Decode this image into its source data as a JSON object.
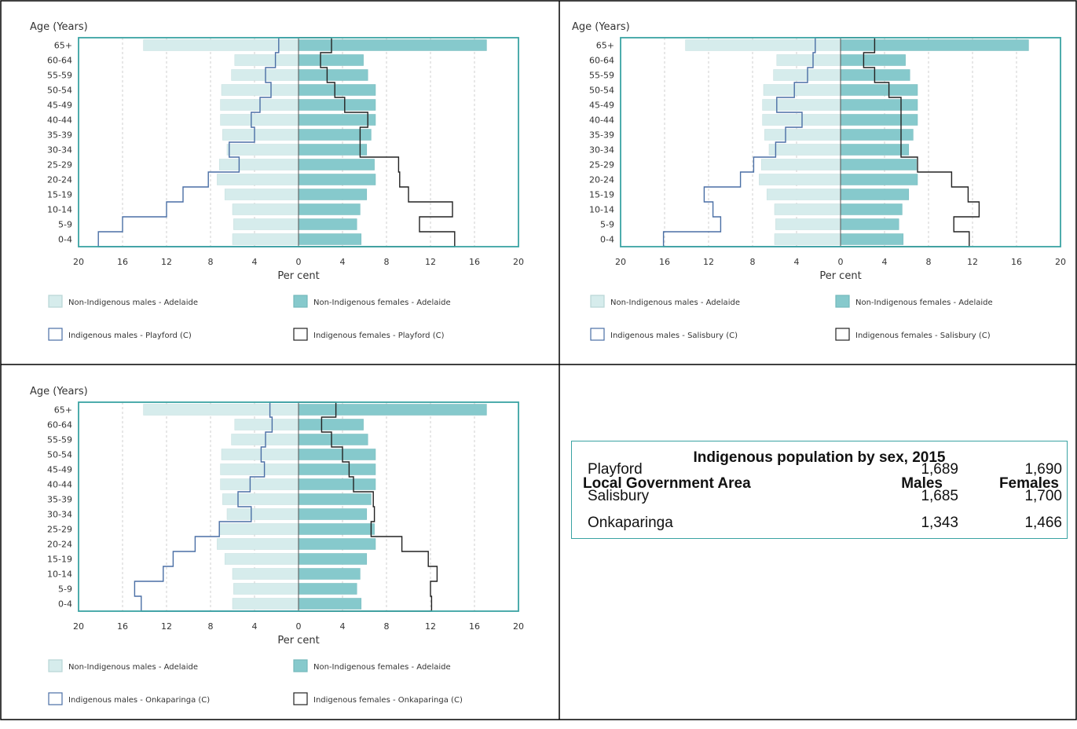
{
  "colors": {
    "frame": "#000000",
    "plot_border": "#3aa3a3",
    "male_bar_fill": "#d6ecec",
    "female_bar_fill": "#86c9cc",
    "indigenous_male_line": "#4a6fa5",
    "indigenous_female_line": "#222222"
  },
  "chart_data": [
    {
      "type": "bar",
      "orientation": "horizontal-population-pyramid",
      "ylabel": "Age (Years)",
      "xlabel": "Per cent",
      "categories": [
        "65+",
        "60-64",
        "55-59",
        "50-54",
        "45-49",
        "40-44",
        "35-39",
        "30-34",
        "25-29",
        "20-24",
        "15-19",
        "10-14",
        "5-9",
        "0-4"
      ],
      "xticks": [
        "20",
        "16",
        "12",
        "8",
        "4",
        "0",
        "4",
        "8",
        "12",
        "16",
        "20"
      ],
      "xlim": [
        -20,
        20
      ],
      "series": [
        {
          "name": "Non-Indigenous males - Adelaide",
          "kind": "bar",
          "side": "left",
          "values": [
            14.1,
            5.8,
            6.1,
            7.0,
            7.1,
            7.1,
            6.9,
            6.5,
            7.2,
            7.4,
            6.7,
            6.0,
            5.9,
            6.0
          ]
        },
        {
          "name": "Non-Indigenous females - Adelaide",
          "kind": "bar",
          "side": "right",
          "values": [
            17.1,
            5.9,
            6.3,
            7.0,
            7.0,
            7.0,
            6.6,
            6.2,
            6.9,
            7.0,
            6.2,
            5.6,
            5.3,
            5.7
          ]
        },
        {
          "name": "Indigenous males - Playford (C)",
          "kind": "step",
          "side": "left",
          "values": [
            1.8,
            2.1,
            3.0,
            2.5,
            3.5,
            4.3,
            4.0,
            6.3,
            5.4,
            8.2,
            10.5,
            12.0,
            16.0,
            18.2
          ]
        },
        {
          "name": "Indigenous females - Playford (C)",
          "kind": "step",
          "side": "right",
          "values": [
            3.0,
            2.0,
            2.6,
            3.3,
            4.2,
            6.3,
            5.6,
            5.6,
            9.1,
            9.2,
            10.0,
            14.0,
            11.0,
            14.2
          ]
        }
      ]
    },
    {
      "type": "bar",
      "orientation": "horizontal-population-pyramid",
      "ylabel": "Age (Years)",
      "xlabel": "Per cent",
      "categories": [
        "65+",
        "60-64",
        "55-59",
        "50-54",
        "45-49",
        "40-44",
        "35-39",
        "30-34",
        "25-29",
        "20-24",
        "15-19",
        "10-14",
        "5-9",
        "0-4"
      ],
      "xticks": [
        "20",
        "16",
        "12",
        "8",
        "4",
        "0",
        "4",
        "8",
        "12",
        "16",
        "20"
      ],
      "xlim": [
        -20,
        20
      ],
      "series": [
        {
          "name": "Non-Indigenous males - Adelaide",
          "kind": "bar",
          "side": "left",
          "values": [
            14.1,
            5.8,
            6.1,
            7.0,
            7.1,
            7.1,
            6.9,
            6.5,
            7.2,
            7.4,
            6.7,
            6.0,
            5.9,
            6.0
          ]
        },
        {
          "name": "Non-Indigenous females - Adelaide",
          "kind": "bar",
          "side": "right",
          "values": [
            17.1,
            5.9,
            6.3,
            7.0,
            7.0,
            7.0,
            6.6,
            6.2,
            6.9,
            7.0,
            6.2,
            5.6,
            5.3,
            5.7
          ]
        },
        {
          "name": "Indigenous males - Salisbury (C)",
          "kind": "step",
          "side": "left",
          "values": [
            2.3,
            2.5,
            3.0,
            4.2,
            5.8,
            3.5,
            5.0,
            5.9,
            7.9,
            9.1,
            12.4,
            11.6,
            10.9,
            16.1
          ]
        },
        {
          "name": "Indigenous females - Salisbury (C)",
          "kind": "step",
          "side": "right",
          "values": [
            3.1,
            2.1,
            3.1,
            4.4,
            5.5,
            5.5,
            5.5,
            5.5,
            7.0,
            10.1,
            11.6,
            12.6,
            10.3,
            11.7
          ]
        }
      ]
    },
    {
      "type": "bar",
      "orientation": "horizontal-population-pyramid",
      "ylabel": "Age (Years)",
      "xlabel": "Per cent",
      "categories": [
        "65+",
        "60-64",
        "55-59",
        "50-54",
        "45-49",
        "40-44",
        "35-39",
        "30-34",
        "25-29",
        "20-24",
        "15-19",
        "10-14",
        "5-9",
        "0-4"
      ],
      "xticks": [
        "20",
        "16",
        "12",
        "8",
        "4",
        "0",
        "4",
        "8",
        "12",
        "16",
        "20"
      ],
      "xlim": [
        -20,
        20
      ],
      "series": [
        {
          "name": "Non-Indigenous males - Adelaide",
          "kind": "bar",
          "side": "left",
          "values": [
            14.1,
            5.8,
            6.1,
            7.0,
            7.1,
            7.1,
            6.9,
            6.5,
            7.2,
            7.4,
            6.7,
            6.0,
            5.9,
            6.0
          ]
        },
        {
          "name": "Non-Indigenous females - Adelaide",
          "kind": "bar",
          "side": "right",
          "values": [
            17.1,
            5.9,
            6.3,
            7.0,
            7.0,
            7.0,
            6.6,
            6.2,
            6.9,
            7.0,
            6.2,
            5.6,
            5.3,
            5.7
          ]
        },
        {
          "name": "Indigenous males - Onkaparinga (C)",
          "kind": "step",
          "side": "left",
          "values": [
            2.6,
            2.4,
            3.0,
            3.4,
            3.1,
            4.4,
            5.5,
            4.3,
            7.2,
            9.4,
            11.4,
            12.3,
            14.9,
            14.3
          ]
        },
        {
          "name": "Indigenous females - Onkaparinga (C)",
          "kind": "step",
          "side": "right",
          "values": [
            3.4,
            2.1,
            3.0,
            4.0,
            4.6,
            5.0,
            6.8,
            6.9,
            6.6,
            9.4,
            11.8,
            12.6,
            12.0,
            12.1
          ]
        }
      ]
    }
  ],
  "table": {
    "title": "Indigenous population by sex, 2015",
    "headers": [
      "Local Government Area",
      "Males",
      "Females"
    ],
    "rows": [
      [
        "Playford",
        "1,689",
        "1,690"
      ],
      [
        "Salisbury",
        "1,685",
        "1,700"
      ],
      [
        "Onkaparinga",
        "1,343",
        "1,466"
      ]
    ]
  }
}
